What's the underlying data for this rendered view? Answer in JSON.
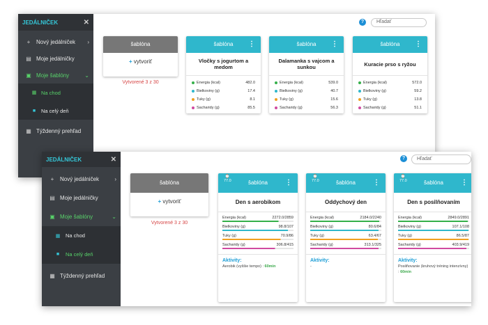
{
  "colors": {
    "accent": "#2fb7cc",
    "sidebar": "#3b3f44",
    "brand": "#35c7d8",
    "active": "#58d26a",
    "created": "#d64545"
  },
  "back": {
    "sidebar": {
      "title": "JEDÁLNIČEK",
      "items": [
        {
          "label": "Nový jedálniček",
          "icon": "plus-icon"
        },
        {
          "label": "Moje jedálničky",
          "icon": "list-icon"
        },
        {
          "label": "Moje šablóny",
          "icon": "template-icon"
        },
        {
          "label": "Týždenný prehľad",
          "icon": "calendar-icon"
        }
      ],
      "subs": [
        {
          "label": "Na chod"
        },
        {
          "label": "Na celý deň"
        }
      ]
    },
    "search_placeholder": "Hľadať",
    "template_card": {
      "header": "šablóna",
      "create": "vytvoriť",
      "created": "Vytvorené 3 z 30"
    },
    "cards": [
      {
        "header": "šablóna",
        "title": "Vločky s jogurtom a medom",
        "rows": [
          {
            "label": "Energia (kcal)",
            "value": "482.0"
          },
          {
            "label": "Bielkoviny (g)",
            "value": "17.4"
          },
          {
            "label": "Tuky (g)",
            "value": "8.1"
          },
          {
            "label": "Sacharidy (g)",
            "value": "85.5"
          }
        ]
      },
      {
        "header": "šablóna",
        "title": "Dalamanka s vajcom a sunkou",
        "rows": [
          {
            "label": "Energia (kcal)",
            "value": "539.0"
          },
          {
            "label": "Bielkoviny (g)",
            "value": "40.7"
          },
          {
            "label": "Tuky (g)",
            "value": "15.6"
          },
          {
            "label": "Sacharidy (g)",
            "value": "56.3"
          }
        ]
      },
      {
        "header": "šablóna",
        "title": "Kuracie prso s ryžou",
        "rows": [
          {
            "label": "Energia (kcal)",
            "value": "572.0"
          },
          {
            "label": "Bielkoviny (g)",
            "value": "59.2"
          },
          {
            "label": "Tuky (g)",
            "value": "13.8"
          },
          {
            "label": "Sacharidy (g)",
            "value": "51.1"
          }
        ]
      }
    ]
  },
  "front": {
    "sidebar": {
      "title": "JEDÁLNIČEK",
      "items": [
        {
          "label": "Nový jedálniček",
          "icon": "plus-icon"
        },
        {
          "label": "Moje jedálničky",
          "icon": "list-icon"
        },
        {
          "label": "Moje šablóny",
          "icon": "template-icon"
        },
        {
          "label": "Týždenný prehľad",
          "icon": "calendar-icon"
        }
      ],
      "subs": [
        {
          "label": "Na chod"
        },
        {
          "label": "Na celý deň"
        }
      ]
    },
    "search_placeholder": "Hľadať",
    "template_card": {
      "header": "šablóna",
      "create": "vytvoriť",
      "created": "Vytvorené 3 z 30"
    },
    "activity_label": "Aktivity:",
    "cards": [
      {
        "header": "šablóna",
        "gauge": "77.0",
        "title": "Den s aerobikom",
        "rows": [
          {
            "label": "Energia (kcal)",
            "value": "2272.0/2859",
            "pct": 0.79
          },
          {
            "label": "Bielkoviny (g)",
            "value": "98.8/107",
            "pct": 0.92
          },
          {
            "label": "Tuky (g)",
            "value": "70.9/86",
            "pct": 0.82
          },
          {
            "label": "Sacharidy (g)",
            "value": "306.8/415",
            "pct": 0.74
          }
        ],
        "activity": "Aerobik (vyššie tempo) : ",
        "duration": "60min"
      },
      {
        "header": "šablóna",
        "gauge": "77.0",
        "title": "Oddychový den",
        "rows": [
          {
            "label": "Energia (kcal)",
            "value": "2184.0/2240",
            "pct": 0.97
          },
          {
            "label": "Bielkoviny (g)",
            "value": "80.6/84",
            "pct": 0.96
          },
          {
            "label": "Tuky (g)",
            "value": "63.4/67",
            "pct": 0.95
          },
          {
            "label": "Sacharidy (g)",
            "value": "313.1/325",
            "pct": 0.96
          }
        ],
        "activity": "-",
        "duration": ""
      },
      {
        "header": "šablóna",
        "gauge": "77.0",
        "title": "Den s posilňovaním",
        "rows": [
          {
            "label": "Energia (kcal)",
            "value": "2849.0/2891",
            "pct": 0.98
          },
          {
            "label": "Bielkoviny (g)",
            "value": "107.1/108",
            "pct": 0.99
          },
          {
            "label": "Tuky (g)",
            "value": "86.5/87",
            "pct": 0.99
          },
          {
            "label": "Sacharidy (g)",
            "value": "403.9/419",
            "pct": 0.96
          }
        ],
        "activity": "Posilňovanie (kruhový tréning intenzívny) : ",
        "duration": "60min"
      }
    ]
  }
}
